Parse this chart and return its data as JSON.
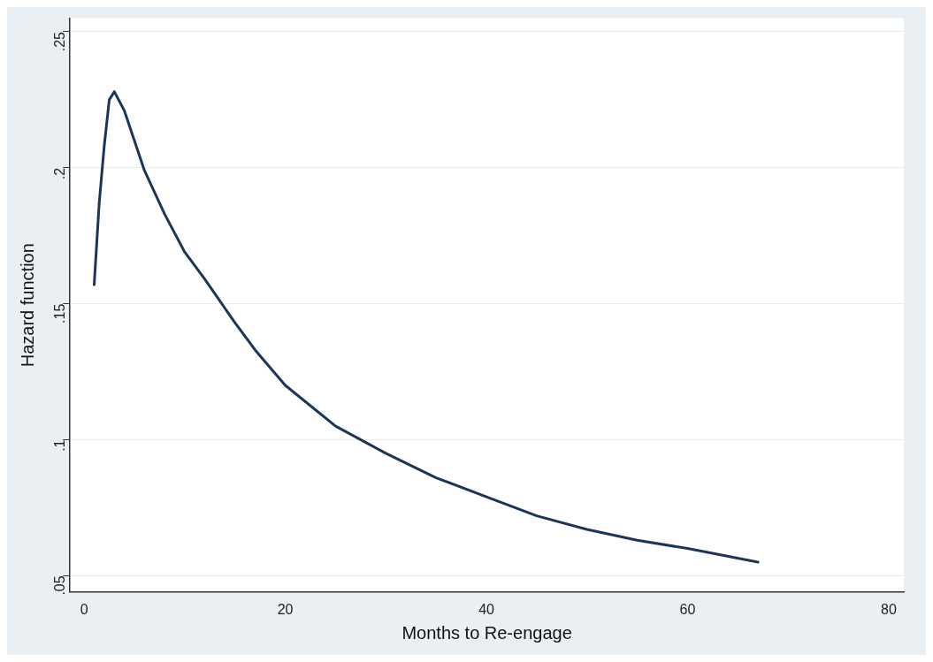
{
  "chart_data": {
    "type": "line",
    "xlabel": "Months to Re-engage",
    "ylabel": "Hazard function",
    "x": [
      1,
      1.5,
      2,
      2.5,
      3,
      4,
      6,
      8,
      10,
      12,
      15,
      17,
      20,
      25,
      30,
      35,
      40,
      45,
      50,
      55,
      60,
      67
    ],
    "series": [
      {
        "color": "#1c3658",
        "values": [
          0.157,
          0.187,
          0.208,
          0.225,
          0.228,
          0.221,
          0.199,
          0.183,
          0.169,
          0.159,
          0.143,
          0.133,
          0.12,
          0.105,
          0.095,
          0.086,
          0.079,
          0.072,
          0.067,
          0.063,
          0.06,
          0.055
        ]
      }
    ],
    "xlim": [
      -1.4,
      81.5
    ],
    "ylim": [
      0.044,
      0.255
    ],
    "xticks": [
      0,
      20,
      40,
      60,
      80
    ],
    "yticks": [
      {
        "value": 0.05,
        "label": ".05"
      },
      {
        "value": 0.1,
        "label": ".1"
      },
      {
        "value": 0.15,
        "label": ".15"
      },
      {
        "value": 0.2,
        "label": ".2"
      },
      {
        "value": 0.25,
        "label": ".25"
      }
    ],
    "grid": "y",
    "legend": false,
    "marker": "none",
    "line_style": "solid"
  }
}
